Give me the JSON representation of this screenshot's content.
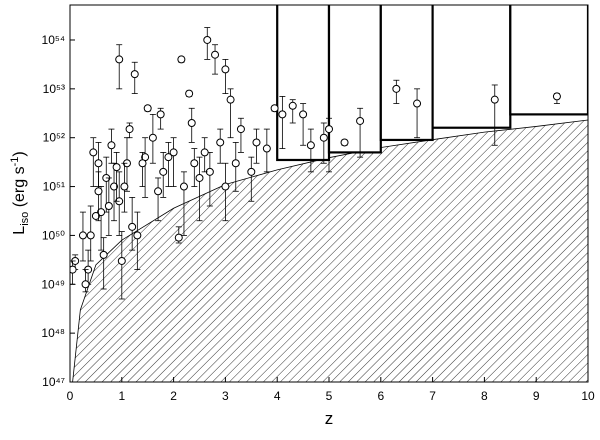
{
  "chart_data": {
    "type": "scatter",
    "x_label": "z",
    "y_label": {
      "main": "L",
      "sub": "iso",
      "mid": " (erg s",
      "sup": "-1",
      "end": ")"
    },
    "log_y": true,
    "xlim": [
      0,
      10
    ],
    "ylim": [
      1e+47,
      5.2e+54
    ],
    "xticks": [
      0,
      1,
      2,
      3,
      4,
      5,
      6,
      7,
      8,
      9,
      10
    ],
    "yticks": [
      {
        "value": 1e+47,
        "label": "10⁴⁷"
      },
      {
        "value": 1e+48,
        "label": "10⁴⁸"
      },
      {
        "value": 1e+49,
        "label": "10⁴⁹"
      },
      {
        "value": 1e+50,
        "label": "10⁵⁰"
      },
      {
        "value": 1e+51,
        "label": "10⁵¹"
      },
      {
        "value": 1e+52,
        "label": "10⁵²"
      },
      {
        "value": 1e+53,
        "label": "10⁵³"
      },
      {
        "value": 1e+54,
        "label": "10⁵⁴"
      }
    ],
    "threshold": {
      "x": [
        0.05,
        0.2,
        0.5,
        1,
        2,
        3,
        4,
        5,
        6,
        7,
        8,
        9,
        10
      ],
      "values": [
        1e+47,
        3e+48,
        2.5e+49,
        8e+49,
        3.6e+50,
        1.1e+51,
        2.2e+51,
        3.9e+51,
        6.3e+51,
        9.1e+51,
        1.3e+52,
        1.7e+52,
        2.3e+52
      ]
    },
    "boxes": [
      {
        "x": [
          4,
          5
        ],
        "bottom": 3.5e+51
      },
      {
        "x": [
          5,
          6
        ],
        "bottom": 5e+51
      },
      {
        "x": [
          6,
          7
        ],
        "bottom": 9e+51
      },
      {
        "x": [
          7,
          8.5
        ],
        "bottom": 1.6e+52
      },
      {
        "x": [
          8.5,
          10
        ],
        "bottom": 3e+52
      }
    ],
    "series": [
      {
        "x": [
          0.95,
          1.25,
          2.65,
          2.15,
          2.3,
          3.0,
          3.1,
          2.8,
          1.5,
          6.3,
          6.7,
          8.2,
          9.4,
          5.6,
          4.1,
          4.3,
          4.5,
          4.65,
          4.9,
          5.0,
          5.3,
          3.95,
          3.8,
          3.5,
          3.2,
          3.0,
          2.7,
          2.5,
          2.2,
          2.1,
          1.9,
          1.7,
          1.6,
          1.45,
          1.3,
          1.2,
          1.1,
          1.0,
          0.95,
          0.85,
          0.8,
          0.7,
          0.65,
          0.6,
          0.55,
          0.5,
          0.45,
          0.4,
          0.35,
          0.3,
          0.25,
          0.1,
          0.05,
          0.55,
          0.75,
          1.05,
          1.4,
          1.8,
          2.0,
          2.4,
          2.6,
          2.9,
          3.3,
          3.6,
          2.35,
          1.15,
          1.75,
          0.9
        ],
        "values": [
          4e+53,
          2e+53,
          1e+54,
          4e+53,
          8e+52,
          2.5e+53,
          6e+52,
          5e+53,
          4e+52,
          1e+53,
          5e+52,
          6e+52,
          7e+52,
          2.2e+52,
          3e+52,
          4.5e+52,
          3e+52,
          7e+51,
          1e+52,
          1.5e+52,
          8e+51,
          4e+52,
          6e+51,
          2e+51,
          3e+51,
          1e+51,
          2e+51,
          1.5e+51,
          1e+51,
          9e+49,
          4e+51,
          8e+50,
          1e+52,
          4e+51,
          1e+50,
          1.5e+50,
          3e+51,
          3e+49,
          5e+50,
          1e+51,
          7e+51,
          1.5e+51,
          4e+49,
          3e+50,
          3e+51,
          2.5e+50,
          5e+51,
          1e+50,
          2e+49,
          1e+49,
          1e+50,
          3e+49,
          2e+49,
          8e+50,
          4e+50,
          1e+51,
          3e+51,
          2e+51,
          5e+51,
          3e+51,
          5e+51,
          8e+51,
          1.5e+52,
          8e+51,
          2e+52,
          1.5e+52,
          3e+52,
          2.5e+51
        ],
        "lower": [
          1e+53,
          8e+52,
          4e+53,
          3.5e+53,
          7e+52,
          8e+52,
          1e+52,
          2e+53,
          3.5e+52,
          5e+52,
          1e+52,
          7e+51,
          5e+52,
          4e+51,
          6e+51,
          2e+52,
          7e+51,
          2e+51,
          3e+51,
          2e+51,
          7e+51,
          3.5e+52,
          2e+51,
          5e+50,
          8e+50,
          2e+50,
          4e+50,
          2e+50,
          1e+50,
          7e+49,
          1e+51,
          2e+50,
          3e+51,
          6e+50,
          2e+49,
          5e+49,
          8e+50,
          5e+48,
          1e+50,
          2e+50,
          3e+51,
          3e+50,
          8e+48,
          5e+49,
          1e+51,
          2.3e+50,
          1e+51,
          3e+49,
          1e+49,
          7e+48,
          3e+49,
          2e+49,
          1e+49,
          2e+50,
          1e+50,
          3e+50,
          1e+51,
          6e+50,
          1e+51,
          1e+51,
          2e+51,
          3e+51,
          5e+51,
          3e+51,
          8e+51,
          1e+52,
          1.5e+52,
          5e+50
        ],
        "upper": [
          8e+53,
          3.5e+53,
          1.8e+54,
          4.5e+53,
          9e+52,
          4e+53,
          1e+53,
          8e+53,
          4.5e+52,
          1.5e+53,
          1e+53,
          1.2e+53,
          8e+52,
          4e+52,
          7e+52,
          6e+52,
          5e+52,
          1.5e+52,
          2e+52,
          2.5e+52,
          9e+51,
          4.5e+52,
          1.5e+52,
          4e+51,
          8e+51,
          3e+51,
          5e+51,
          4e+51,
          2e+51,
          1.5e+50,
          8e+51,
          1.5e+51,
          3e+52,
          1e+52,
          3e+50,
          6e+50,
          1e+52,
          1.2e+50,
          2e+51,
          3e+51,
          1.5e+52,
          4e+51,
          9e+49,
          1e+51,
          8e+51,
          2.7e+50,
          1e+52,
          4e+50,
          5e+49,
          2e+49,
          3e+50,
          4e+49,
          3e+49,
          2e+51,
          1.5e+51,
          3e+51,
          5e+51,
          5e+51,
          1e+52,
          6e+51,
          1e+52,
          1.5e+52,
          2.5e+52,
          1.5e+52,
          4e+52,
          2e+52,
          4e+52,
          5e+51
        ]
      }
    ]
  }
}
